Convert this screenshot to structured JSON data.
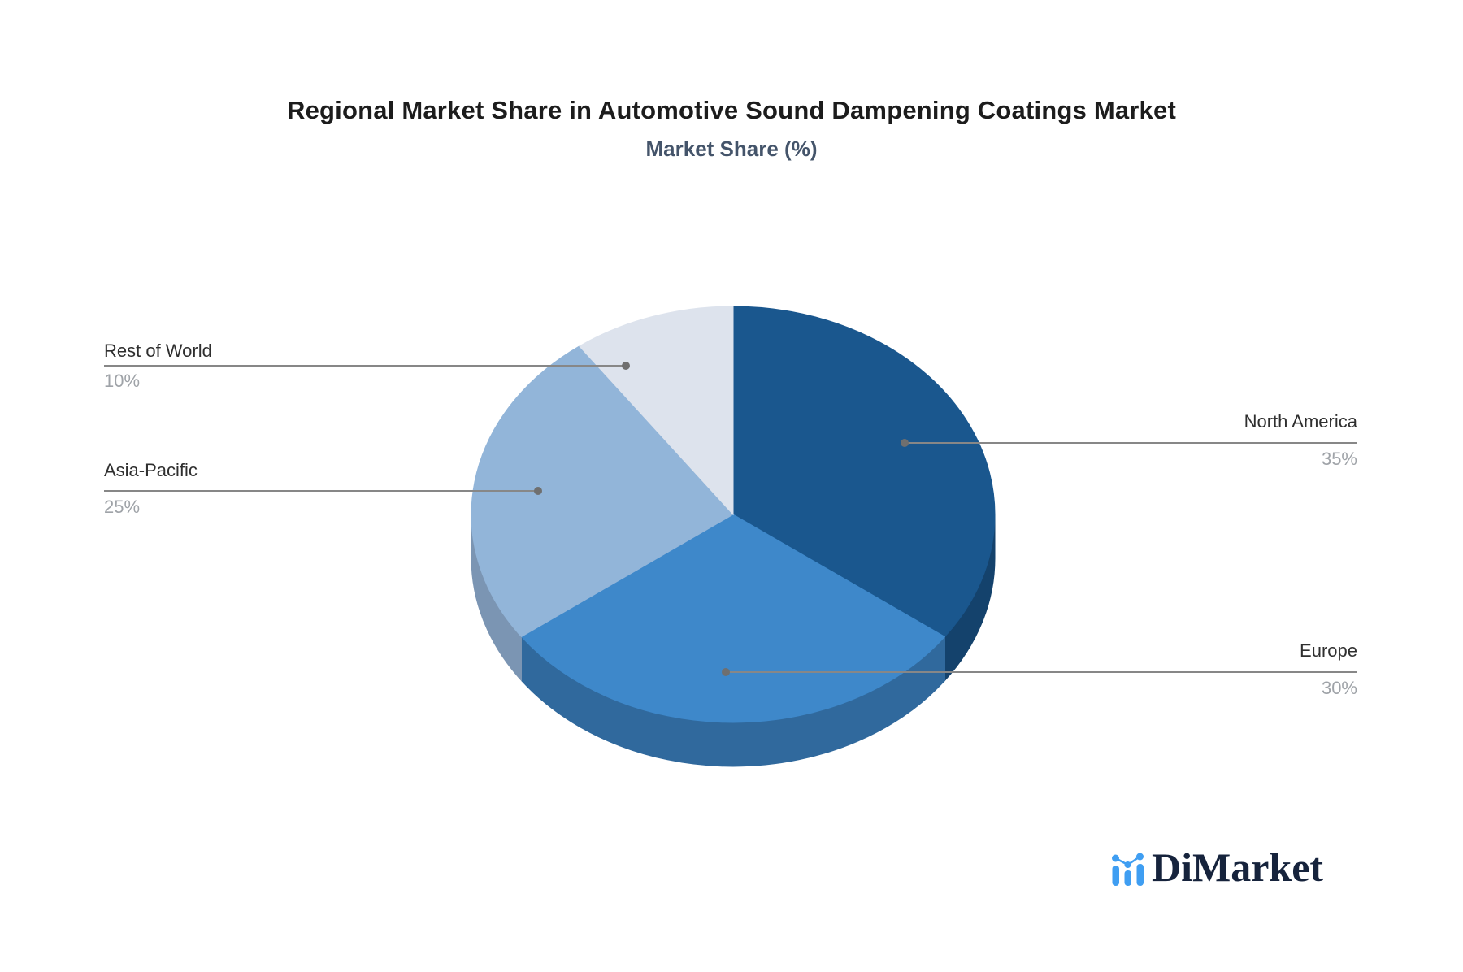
{
  "page": {
    "background": "#ffffff"
  },
  "header": {
    "title": "Regional Market Share in Automotive Sound Dampening Coatings Market",
    "subtitle": "Market Share (%)"
  },
  "chart_data": {
    "type": "pie",
    "style": "3d-pie",
    "title": "Regional Market Share in Automotive Sound Dampening Coatings Market",
    "subtitle": "Market Share (%)",
    "unit": "%",
    "start_angle": "12-oclock",
    "direction": "clockwise",
    "legend_position": "none",
    "points": [
      {
        "label": "North America",
        "value": 35,
        "display": "35%",
        "color": "#1a578e",
        "side_color": "#14426c",
        "label_side": "right"
      },
      {
        "label": "Europe",
        "value": 30,
        "display": "30%",
        "color": "#3e88ca",
        "side_color": "#30699d",
        "label_side": "right"
      },
      {
        "label": "Asia-Pacific",
        "value": 25,
        "display": "25%",
        "color": "#92b5d9",
        "side_color": "#7b95b3",
        "label_side": "left"
      },
      {
        "label": "Rest of World",
        "value": 10,
        "display": "10%",
        "color": "#dde3ed",
        "side_color": "#b7c0cf",
        "label_side": "left"
      }
    ]
  },
  "branding": {
    "logo_text": "DiMarket",
    "logo_icon": "bar-chart-with-trend-dots",
    "logo_icon_color": "#3f9ef2",
    "logo_text_color": "#16233c"
  },
  "colors": {
    "leader_line": "#878787",
    "leader_dot": "#6f6f6f",
    "label_text": "#2f2f2f",
    "value_text": "#9fa3a8",
    "title_text": "#1c1c1c",
    "subtitle_text": "#44546a"
  }
}
